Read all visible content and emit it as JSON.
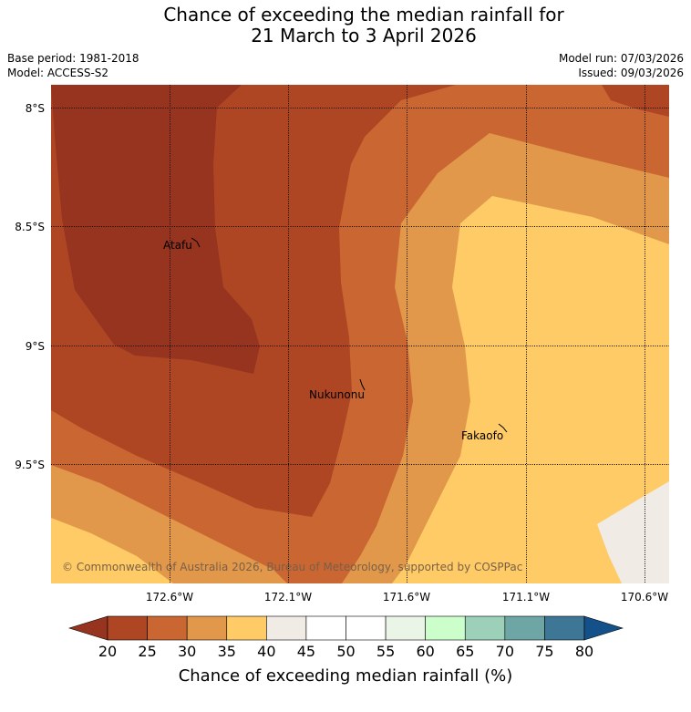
{
  "title": {
    "line1": "Chance of exceeding the median rainfall for",
    "line2": "21 March to 3 April 2026"
  },
  "meta": {
    "base_period": "Base period: 1981-2018",
    "model": "Model: ACCESS-S2",
    "model_run": "Model run: 07/03/2026",
    "issued": "Issued: 09/03/2026"
  },
  "map": {
    "lat_ticks": [
      "8°S",
      "8.5°S",
      "9°S",
      "9.5°S"
    ],
    "lon_ticks": [
      "172.6°W",
      "172.1°W",
      "171.6°W",
      "171.1°W",
      "170.6°W"
    ],
    "places": [
      "Atafu",
      "Nukunonu",
      "Fakaofo"
    ],
    "copyright": "© Commonwealth of Australia 2026, Bureau of Meteorology, supported by COSPPac"
  },
  "colorbar": {
    "title": "Chance of exceeding median rainfall (%)",
    "ticks": [
      "20",
      "25",
      "30",
      "35",
      "40",
      "45",
      "50",
      "55",
      "60",
      "65",
      "70",
      "75",
      "80"
    ],
    "colors": [
      "#ae4624",
      "#ca6632",
      "#e1984a",
      "#fecb66",
      "#f1ebe6",
      "#ffffff",
      "#ffffff",
      "#eaf5e8",
      "#ccfecb",
      "#9dd0b8",
      "#6da6a5",
      "#3d7795"
    ],
    "extend_low_color": "#963420",
    "extend_high_color": "#14508a"
  },
  "legend_colors": {
    "below_20": "#963420",
    "20_25": "#ae4624",
    "25_30": "#ca6632",
    "30_35": "#e1984a",
    "35_40": "#fecb66",
    "40_45": "#f1ebe6"
  }
}
